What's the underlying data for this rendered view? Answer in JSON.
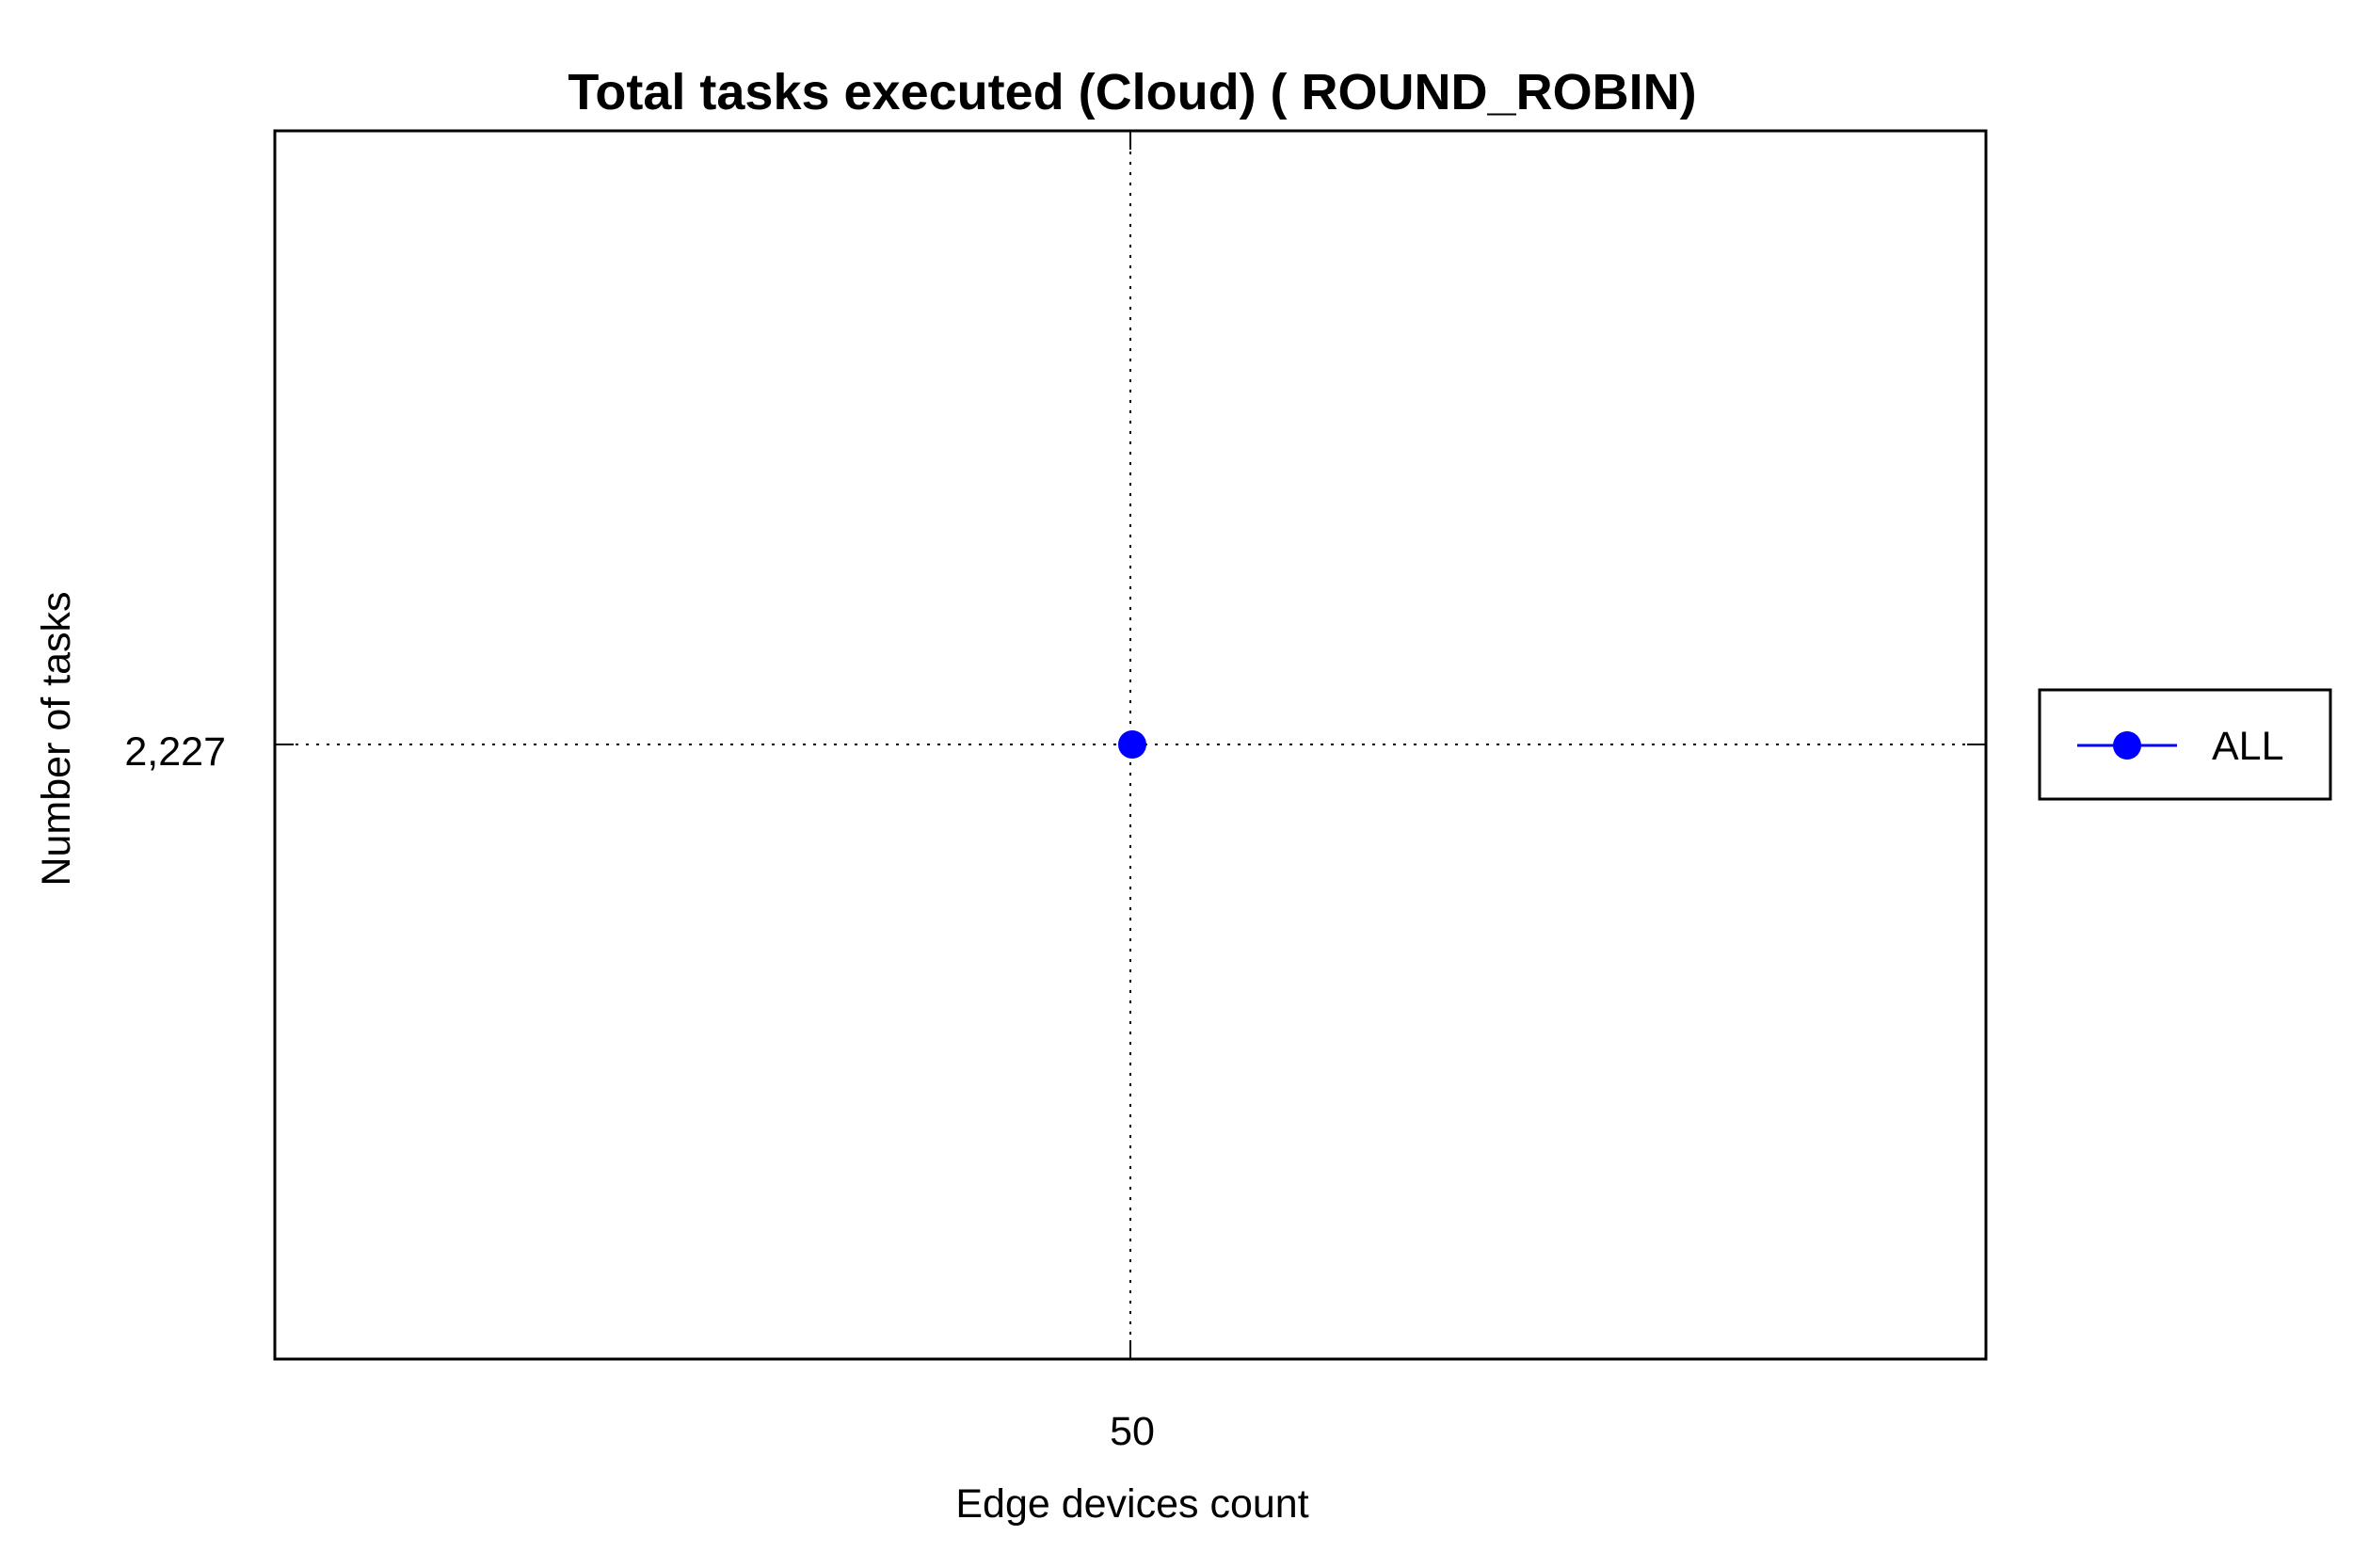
{
  "chart_data": {
    "type": "line",
    "title": "Total tasks executed (Cloud) ( ROUND_ROBIN)",
    "xlabel": "Edge devices count",
    "ylabel": "Number of tasks",
    "x_ticks": [
      "50"
    ],
    "y_ticks": [
      "2,227"
    ],
    "grid": true,
    "legend_position": "right",
    "series": [
      {
        "name": "ALL",
        "color": "#0000ff",
        "marker": "circle",
        "x": [
          50
        ],
        "y": [
          2227
        ]
      }
    ]
  }
}
